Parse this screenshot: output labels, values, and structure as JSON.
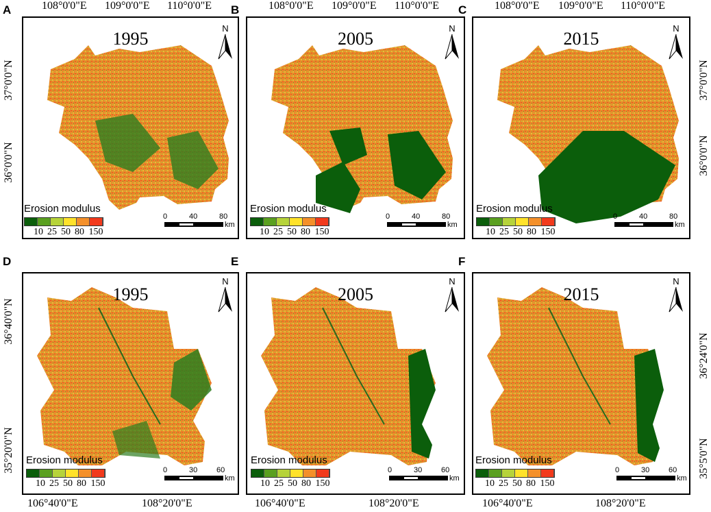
{
  "panels": [
    {
      "letter": "A",
      "year": "1995"
    },
    {
      "letter": "B",
      "year": "2005"
    },
    {
      "letter": "C",
      "year": "2015"
    },
    {
      "letter": "D",
      "year": "1995"
    },
    {
      "letter": "E",
      "year": "2005"
    },
    {
      "letter": "F",
      "year": "2015"
    }
  ],
  "top_axis": [
    "108°0'0\"E",
    "109°0'0\"E",
    "110°0'0\"E"
  ],
  "top_left_lat": [
    "37°0'0\"N",
    "36°0'0\"N"
  ],
  "top_right_lat": [
    "37°0'0\"N",
    "36°0'0\"N"
  ],
  "bottom_axis": [
    "106°40'0\"E",
    "108°20'0\"E"
  ],
  "bottom_left_lat": [
    "36°40'0\"N",
    "35°20'0\"N"
  ],
  "bottom_right_lat": [
    "36°24'0\"N",
    "35°5'0\"N"
  ],
  "legend": {
    "title": "Erosion modulus",
    "labels": [
      "10",
      "25",
      "50",
      "80",
      "150"
    ],
    "colors": [
      "#0b5e0b",
      "#5aa020",
      "#b6d33a",
      "#ffe22a",
      "#f4902a",
      "#f23a1c"
    ]
  },
  "scale_top": {
    "ticks": [
      "0",
      "40",
      "80"
    ],
    "unit": "km"
  },
  "scale_bottom": {
    "ticks": [
      "0",
      "30",
      "60"
    ],
    "unit": "km"
  },
  "north_label": "N"
}
